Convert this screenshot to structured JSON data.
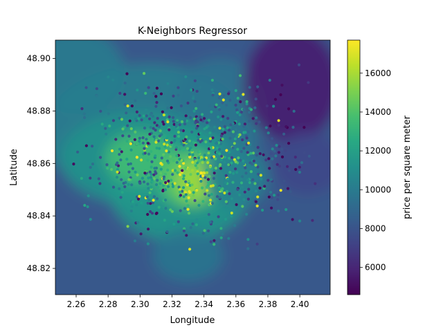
{
  "chart_data": {
    "type": "scatter",
    "title": "K-Neighbors Regressor",
    "xlabel": "Longitude",
    "ylabel": "Latitude",
    "xlim": [
      2.247,
      2.419
    ],
    "ylim": [
      48.81,
      48.907
    ],
    "xticks": [
      2.26,
      2.28,
      2.3,
      2.32,
      2.34,
      2.36,
      2.38,
      2.4
    ],
    "xtick_labels": [
      "2.26",
      "2.28",
      "2.30",
      "2.32",
      "2.34",
      "2.36",
      "2.38",
      "2.40"
    ],
    "yticks": [
      48.82,
      48.84,
      48.86,
      48.88,
      48.9
    ],
    "ytick_labels": [
      "48.82",
      "48.84",
      "48.86",
      "48.88",
      "48.90"
    ],
    "grid": false,
    "background": "filled contour of predicted price per square meter",
    "colormap": "viridis",
    "colorbar": {
      "label": "price per square meter",
      "range": [
        4600,
        17700
      ],
      "ticks": [
        6000,
        8000,
        10000,
        12000,
        14000,
        16000
      ],
      "tick_labels": [
        "6000",
        "8000",
        "10000",
        "12000",
        "14000",
        "16000"
      ]
    },
    "price_field_samples": [
      {
        "x": 2.255,
        "y": 48.9,
        "value": 10200
      },
      {
        "x": 2.3,
        "y": 48.895,
        "value": 10600
      },
      {
        "x": 2.35,
        "y": 48.9,
        "value": 9600
      },
      {
        "x": 2.395,
        "y": 48.9,
        "value": 5600
      },
      {
        "x": 2.33,
        "y": 48.854,
        "value": 15600
      },
      {
        "x": 2.305,
        "y": 48.862,
        "value": 13600
      },
      {
        "x": 2.28,
        "y": 48.84,
        "value": 9900
      },
      {
        "x": 2.36,
        "y": 48.855,
        "value": 10400
      },
      {
        "x": 2.38,
        "y": 48.86,
        "value": 9100
      },
      {
        "x": 2.41,
        "y": 48.85,
        "value": 7800
      },
      {
        "x": 2.3,
        "y": 48.82,
        "value": 7800
      },
      {
        "x": 2.33,
        "y": 48.825,
        "value": 9700
      },
      {
        "x": 2.39,
        "y": 48.825,
        "value": 7600
      },
      {
        "x": 2.255,
        "y": 48.825,
        "value": 7800
      }
    ]
  }
}
